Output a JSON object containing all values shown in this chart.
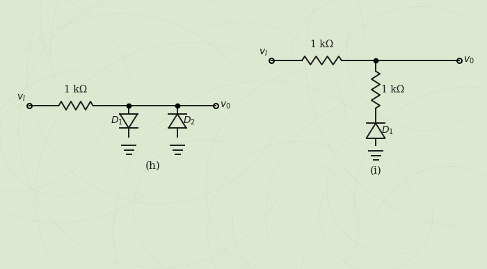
{
  "bg_color": "#dde8d0",
  "line_color": "#1a1a1a",
  "label_h": "(h)",
  "label_i": "(i)",
  "res_label": "1 kΩ",
  "vi_label": "v_I",
  "vo_label": "v_0",
  "D1_label": "D_1",
  "D2_label": "D_2",
  "font_size": 10,
  "lw": 1.4
}
